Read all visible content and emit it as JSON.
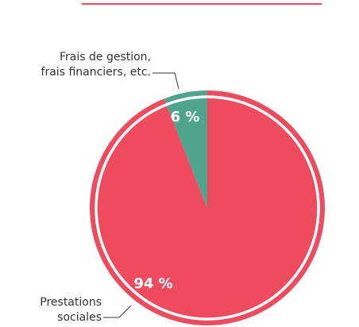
{
  "chart_data": {
    "type": "pie",
    "categories": [
      [
        "Prestations",
        "sociales"
      ],
      [
        "Frais de gestion,",
        "frais financiers, etc."
      ]
    ],
    "values": [
      94,
      6
    ],
    "value_labels": [
      "94 %",
      "6 %"
    ],
    "colors": [
      "#ef4b5f",
      "#4fa48e"
    ]
  }
}
